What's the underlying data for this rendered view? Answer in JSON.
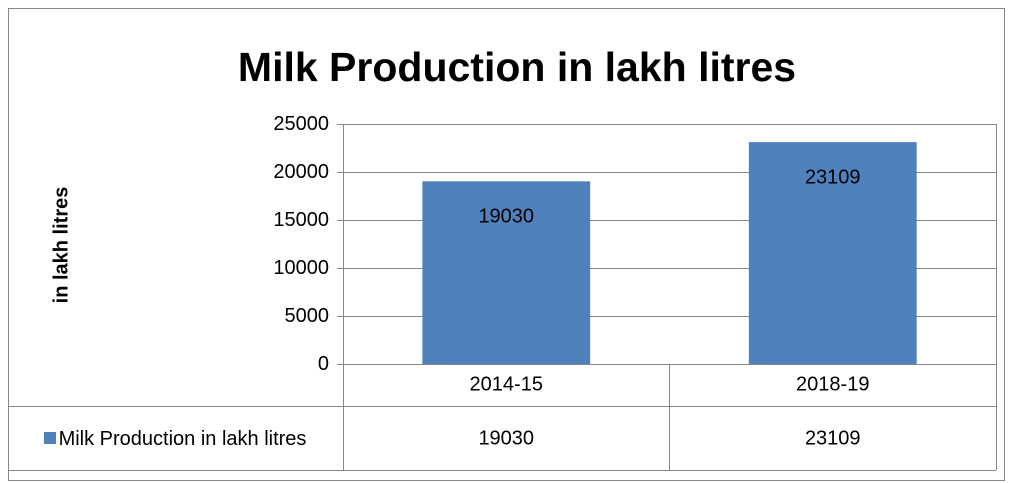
{
  "chart_data": {
    "type": "bar",
    "title": "Milk Production in lakh litres",
    "y_label": "in lakh litres",
    "categories": [
      "2014-15",
      "2018-19"
    ],
    "series": [
      {
        "name": "Milk Production in lakh litres",
        "color": "#4f81bd",
        "values": [
          19030,
          23109
        ]
      }
    ],
    "ylim": [
      0,
      25000
    ],
    "yticks": [
      0,
      5000,
      10000,
      15000,
      20000,
      25000
    ],
    "grid": true,
    "data_table": true
  }
}
